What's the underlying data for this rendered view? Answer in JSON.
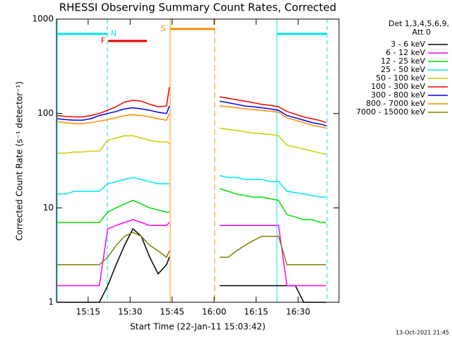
{
  "chart_data": {
    "type": "line",
    "title": "RHESSI Observing Summary Count Rates, Corrected",
    "xlabel": "Start Time (22-Jan-11 15:03:42)",
    "ylabel": "Corrected Count Rate (s⁻¹ detector⁻¹)",
    "legend_title": [
      "Det 1,3,4,5,6,9,",
      "Att 0"
    ],
    "footer": "13-Oct-2021 21:45",
    "flags": [
      "F",
      "N",
      "S"
    ],
    "log_scale": true,
    "xlim": [
      3.7,
      104.6
    ],
    "xticks": [
      {
        "value": 15,
        "label": "15:15"
      },
      {
        "value": 30,
        "label": "15:30"
      },
      {
        "value": 45,
        "label": "15:45"
      },
      {
        "value": 60,
        "label": "16:00"
      },
      {
        "value": 75,
        "label": "16:15"
      },
      {
        "value": 90,
        "label": "16:30"
      }
    ],
    "ylim": [
      1,
      1000
    ],
    "yticks": [
      1,
      10,
      100,
      1000
    ],
    "x": [
      4,
      7,
      10,
      13,
      16,
      19,
      22,
      25,
      28,
      31,
      34,
      37,
      40,
      43,
      44,
      50,
      62,
      65,
      68,
      71,
      74,
      77,
      80,
      83,
      86,
      89,
      92,
      95,
      98,
      100
    ],
    "series": [
      {
        "name": "3 - 6 keV",
        "color": "#000000",
        "values": [
          1,
          1,
          1,
          1,
          1,
          1,
          1.5,
          2.5,
          4,
          6,
          5,
          3,
          2,
          2.5,
          3,
          null,
          1.5,
          1.5,
          1.5,
          1.5,
          1.5,
          1.5,
          1.5,
          1.5,
          1.5,
          1.5,
          1,
          1,
          1,
          1
        ]
      },
      {
        "name": "6 - 12 keV",
        "color": "#ff00ff",
        "values": [
          1.5,
          1.5,
          1.5,
          1.5,
          1.5,
          1.5,
          6,
          6.5,
          7,
          7.5,
          7,
          6.5,
          6.5,
          6.5,
          7,
          null,
          6.5,
          6.5,
          6.5,
          6.5,
          6.5,
          6.5,
          6.5,
          6.5,
          1.5,
          1.5,
          1.5,
          1.5,
          1.5,
          1.5
        ]
      },
      {
        "name": "12 - 25 keV",
        "color": "#00dd00",
        "values": [
          7,
          7,
          7,
          7,
          7,
          7,
          9,
          10,
          11,
          12,
          11,
          10,
          9.5,
          9,
          9,
          null,
          16,
          15,
          14,
          13.5,
          13,
          13,
          12.5,
          12,
          8.5,
          8,
          7.5,
          7.5,
          7,
          7
        ]
      },
      {
        "name": "25 - 50 keV",
        "color": "#00e5ee",
        "values": [
          14,
          14,
          15,
          15,
          15,
          15,
          18,
          19,
          20,
          21,
          20,
          19,
          18,
          18,
          18,
          null,
          22,
          21,
          21,
          20,
          20,
          20,
          19,
          19,
          15,
          14.5,
          14,
          13.5,
          13,
          13
        ]
      },
      {
        "name": "50 - 100 keV",
        "color": "#cccc00",
        "values": [
          38,
          38,
          39,
          39,
          40,
          40,
          52,
          55,
          58,
          58,
          55,
          52,
          50,
          50,
          48,
          null,
          70,
          68,
          66,
          64,
          62,
          61,
          60,
          58,
          46,
          44,
          42,
          40,
          38,
          37
        ]
      },
      {
        "name": "100 - 300 keV",
        "color": "#ee0000",
        "values": [
          95,
          93,
          92,
          92,
          95,
          100,
          108,
          118,
          132,
          138,
          135,
          125,
          118,
          120,
          190,
          null,
          150,
          145,
          140,
          135,
          130,
          125,
          122,
          118,
          105,
          98,
          92,
          88,
          84,
          80
        ]
      },
      {
        "name": "300 - 800 keV",
        "color": "#0000ee",
        "values": [
          88,
          86,
          85,
          85,
          88,
          95,
          100,
          105,
          112,
          115,
          112,
          108,
          103,
          100,
          120,
          null,
          135,
          130,
          125,
          120,
          118,
          115,
          112,
          108,
          95,
          90,
          85,
          80,
          77,
          74
        ]
      },
      {
        "name": "800 - 7000 keV",
        "color": "#ff8c00",
        "values": [
          82,
          80,
          78,
          78,
          80,
          83,
          86,
          90,
          95,
          97,
          95,
          92,
          88,
          85,
          100,
          null,
          120,
          118,
          115,
          112,
          110,
          108,
          106,
          103,
          90,
          85,
          80,
          75,
          72,
          70
        ]
      },
      {
        "name": "7000 - 15000 keV",
        "color": "#808000",
        "values": [
          2.5,
          2.5,
          2.5,
          2.5,
          2.5,
          2.5,
          3,
          4,
          5,
          5.5,
          5,
          4,
          3.5,
          3,
          3.5,
          null,
          3,
          3,
          3.5,
          4,
          4.5,
          5,
          5,
          5,
          2.5,
          2.5,
          2.5,
          2.5,
          2.5,
          2.5
        ]
      }
    ]
  }
}
